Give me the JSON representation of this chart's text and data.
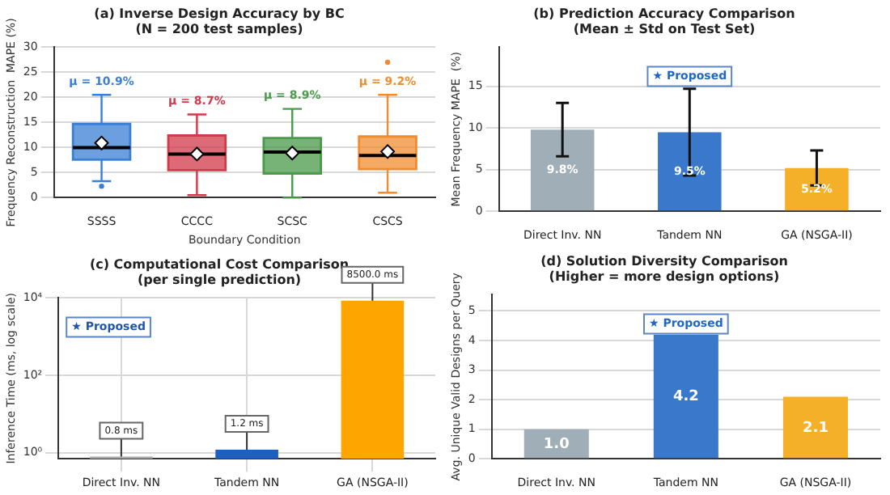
{
  "chart_data": [
    {
      "type": "box",
      "title": "(a) Inverse Design Accuracy by BC",
      "subtitle": "(N = 200 test samples)",
      "xlabel": "Boundary Condition",
      "ylabel": "Frequency Reconstruction  MAPE (%)",
      "categories": [
        "SSSS",
        "CCCC",
        "SCSC",
        "CSCS"
      ],
      "colors": [
        "#3a7fd5",
        "#d03a4a",
        "#4a9a4a",
        "#f08c30"
      ],
      "boxes": [
        {
          "low": 3.3,
          "q1": 7.6,
          "median": 10.0,
          "q3": 14.7,
          "high": 20.5,
          "mean": 10.9,
          "outliers": [
            2.3
          ]
        },
        {
          "low": 0.5,
          "q1": 5.5,
          "median": 8.7,
          "q3": 12.4,
          "high": 16.6,
          "mean": 8.7
        },
        {
          "low": 0,
          "q1": 4.8,
          "median": 9.1,
          "q3": 11.9,
          "high": 17.7,
          "mean": 8.9
        },
        {
          "low": 1.0,
          "q1": 5.7,
          "median": 8.4,
          "q3": 12.2,
          "high": 20.5,
          "mean": 9.2,
          "outliers": [
            27
          ]
        }
      ],
      "ylim": [
        0,
        30
      ],
      "yticks": [
        0,
        5,
        10,
        15,
        20,
        25,
        30
      ],
      "grid": "y",
      "annotations": [
        "μ = 10.9%",
        "μ = 8.7%",
        "μ = 8.9%",
        "μ = 9.2%"
      ]
    },
    {
      "type": "bar",
      "title": "(b) Prediction Accuracy Comparison",
      "subtitle": "(Mean ± Std on Test Set)",
      "ylabel": "Mean Frequency MAPE  (%)",
      "categories": [
        "Direct Inv. NN",
        "Tandem NN",
        "GA (NSGA-II)"
      ],
      "values": [
        9.8,
        9.5,
        5.2
      ],
      "colors": [
        "#a0aeb8",
        "#3a78cc",
        "#f5b02a"
      ],
      "errors": [
        3.2,
        5.2,
        2.1
      ],
      "value_labels": [
        "9.8%",
        "9.5%",
        "5.2%"
      ],
      "ylim": [
        0,
        19.7
      ],
      "yticks": [
        0,
        5,
        10,
        15
      ],
      "grid": "y",
      "annotations": [
        "★ Proposed"
      ]
    },
    {
      "type": "bar",
      "title": "(c) Computational Cost Comparison",
      "subtitle": "(per single prediction)",
      "ylabel": "Inference Time (ms, log scale)",
      "categories": [
        "Direct Inv. NN",
        "Tandem NN",
        "GA (NSGA-II)"
      ],
      "values": [
        0.8,
        1.2,
        8500
      ],
      "colors": [
        "#a8a8a8",
        "#1f5fbf",
        "#ffa500"
      ],
      "value_labels": [
        "0.8 ms",
        "1.2 ms",
        "8500.0 ms"
      ],
      "log": "y",
      "ylim": [
        0.7,
        10000
      ],
      "yticks": [
        {
          "value": 1,
          "label": "10⁰"
        },
        {
          "value": 100,
          "label": "10²"
        },
        {
          "value": 10000,
          "label": "10⁴"
        }
      ],
      "grid": true,
      "annotations": [
        "★ Proposed"
      ]
    },
    {
      "type": "bar",
      "title": "(d) Solution Diversity Comparison",
      "subtitle": "(Higher = more design options)",
      "ylabel": "Avg. Unique Valid Designs per Query",
      "categories": [
        "Direct Inv. NN",
        "Tandem NN",
        "GA (NSGA-II)"
      ],
      "values": [
        1.0,
        4.2,
        2.1
      ],
      "colors": [
        "#a0aeb8",
        "#3a78cc",
        "#f5b02a"
      ],
      "value_labels": [
        "1.0",
        "4.2",
        "2.1"
      ],
      "ylim": [
        0,
        5.55
      ],
      "yticks": [
        0,
        1,
        2,
        3,
        4,
        5
      ],
      "grid": "y",
      "annotations": [
        "★ Proposed"
      ]
    }
  ]
}
